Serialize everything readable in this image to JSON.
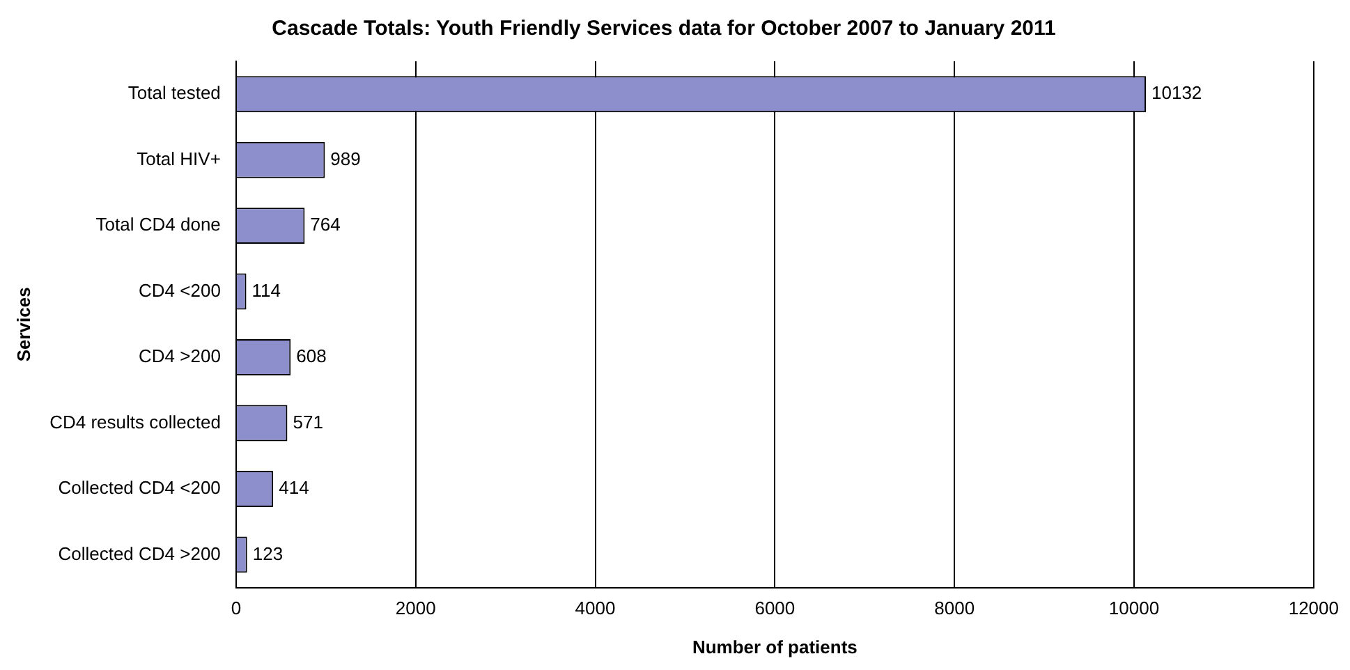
{
  "chart_data": {
    "type": "bar",
    "orientation": "horizontal",
    "title": "Cascade Totals: Youth Friendly Services data for October 2007 to January 2011",
    "xlabel": "Number of patients",
    "ylabel": "Services",
    "categories": [
      "Total tested",
      "Total HIV+",
      "Total CD4 done",
      "CD4 <200",
      "CD4 >200",
      "CD4 results collected",
      "Collected CD4 <200",
      "Collected CD4 >200"
    ],
    "values": [
      10132,
      989,
      764,
      114,
      608,
      571,
      414,
      123
    ],
    "color": "#8c8fcc",
    "xlim": [
      0,
      12000
    ],
    "xticks": [
      0,
      2000,
      4000,
      6000,
      8000,
      10000,
      12000
    ],
    "grid": "x",
    "legend": false,
    "data_labels": true
  }
}
